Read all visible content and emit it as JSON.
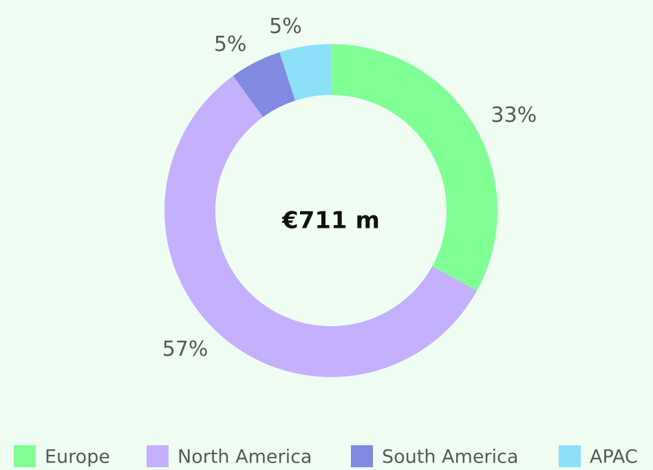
{
  "chart_data": {
    "type": "donut",
    "categories": [
      "Europe",
      "North America",
      "South America",
      "APAC"
    ],
    "values": [
      33,
      57,
      5,
      5
    ],
    "value_labels": [
      "33%",
      "57%",
      "5%",
      "5%"
    ],
    "colors": [
      "#80ff95",
      "#c4b0ff",
      "#7f8ae0",
      "#8ee0f8"
    ],
    "center_label": "€711 m",
    "legend": "bottom"
  }
}
